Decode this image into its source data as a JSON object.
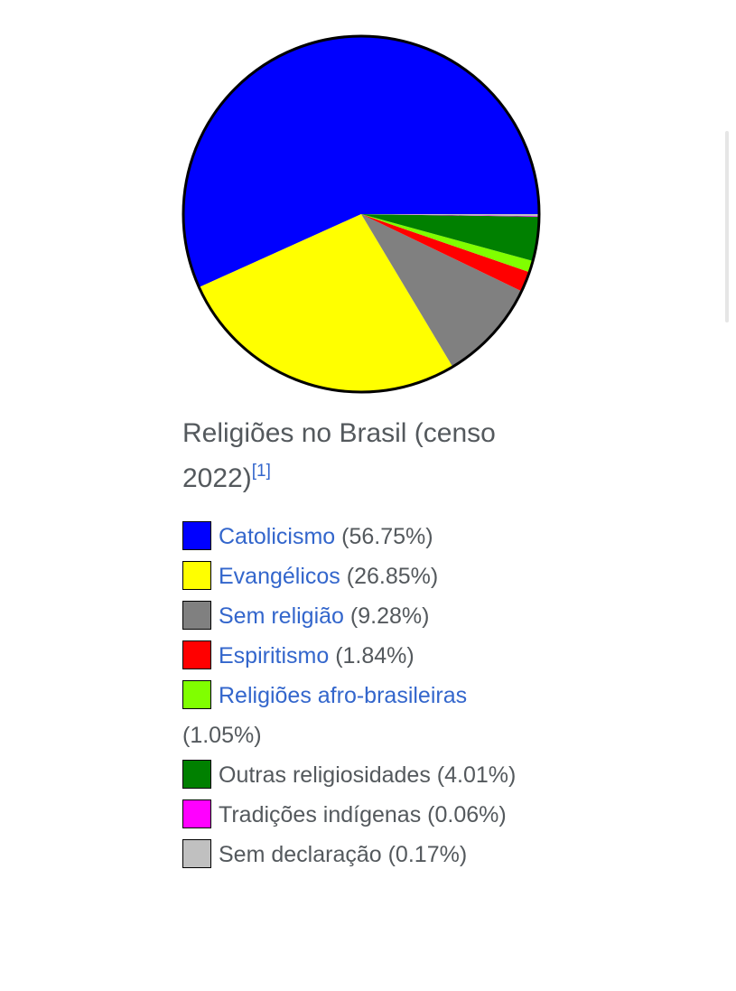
{
  "chart_data": {
    "type": "pie",
    "title": "Religiões no Brasil (censo 2022)",
    "reference": "[1]",
    "categories": [
      "Catolicismo",
      "Evangélicos",
      "Sem religião",
      "Espiritismo",
      "Religiões afro-brasileiras",
      "Outras religiosidades",
      "Tradições indígenas",
      "Sem declaração"
    ],
    "values": [
      56.75,
      26.85,
      9.28,
      1.84,
      1.05,
      4.01,
      0.06,
      0.17
    ],
    "value_labels": [
      "(56.75%)",
      "(26.85%)",
      "(9.28%)",
      "(1.84%)",
      "(1.05%)",
      "(4.01%)",
      "(0.06%)",
      "(0.17%)"
    ],
    "colors": [
      "#0000ff",
      "#ffff00",
      "#808080",
      "#ff0000",
      "#80ff00",
      "#008000",
      "#ff00ff",
      "#c0c0c0"
    ],
    "linked": [
      true,
      true,
      true,
      true,
      true,
      false,
      false,
      false
    ]
  }
}
